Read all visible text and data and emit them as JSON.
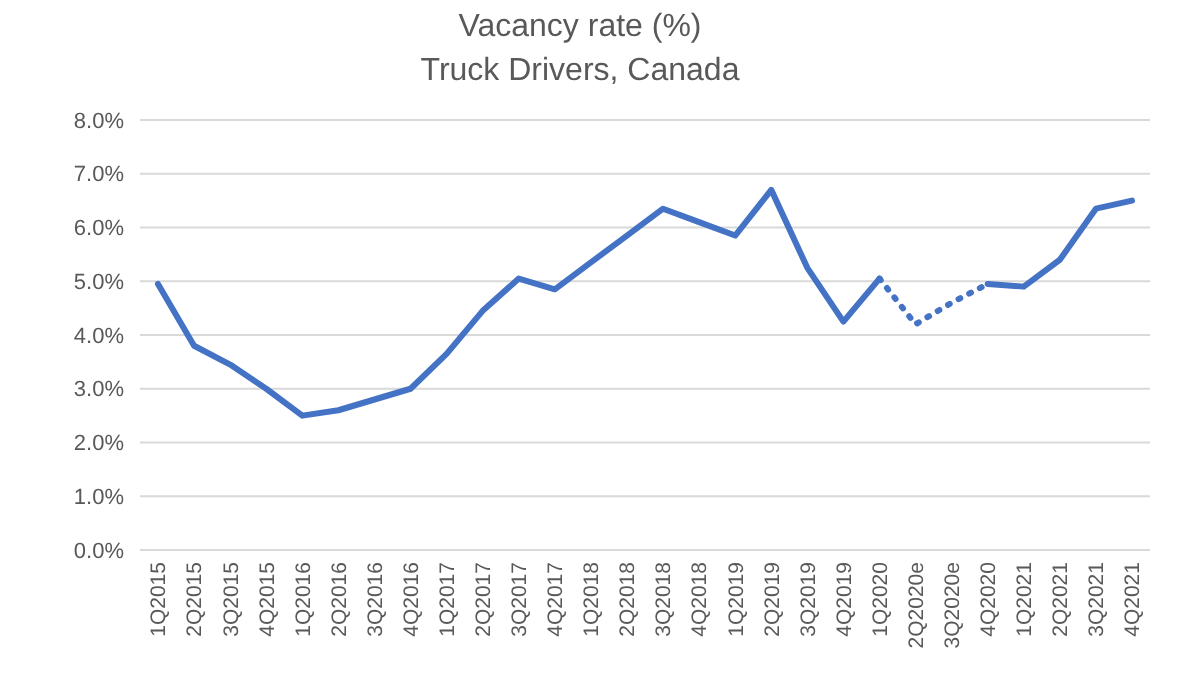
{
  "chart_data": {
    "type": "line",
    "title": "Vacancy rate (%)",
    "subtitle": "Truck Drivers, Canada",
    "categories": [
      "1Q2015",
      "2Q2015",
      "3Q2015",
      "4Q2015",
      "1Q2016",
      "2Q2016",
      "3Q2016",
      "4Q2016",
      "1Q2017",
      "2Q2017",
      "3Q2017",
      "4Q2017",
      "1Q2018",
      "2Q2018",
      "3Q2018",
      "4Q2018",
      "1Q2019",
      "2Q2019",
      "3Q2019",
      "4Q2019",
      "1Q2020",
      "2Q2020e",
      "3Q2020e",
      "4Q2020",
      "1Q2021",
      "2Q2021",
      "3Q2021",
      "4Q2021"
    ],
    "series": [
      {
        "color": "#4472c4",
        "line_style": "solid",
        "values": [
          4.95,
          3.8,
          3.45,
          3.0,
          2.5,
          2.6,
          2.8,
          3.0,
          3.65,
          4.45,
          5.05,
          4.85,
          5.35,
          5.85,
          6.35,
          6.1,
          5.85,
          6.7,
          5.25,
          4.25,
          5.05,
          null,
          null,
          4.95,
          4.9,
          5.4,
          6.35,
          6.5
        ]
      },
      {
        "color": "#4472c4",
        "line_style": "dotted",
        "values": [
          null,
          null,
          null,
          null,
          null,
          null,
          null,
          null,
          null,
          null,
          null,
          null,
          null,
          null,
          null,
          null,
          null,
          null,
          null,
          null,
          5.05,
          4.2,
          4.6,
          4.95,
          null,
          null,
          null,
          null
        ]
      }
    ],
    "ylim": [
      0,
      8
    ],
    "yticks": [
      {
        "value": 0,
        "label": "0.0%"
      },
      {
        "value": 1,
        "label": "1.0%"
      },
      {
        "value": 2,
        "label": "2.0%"
      },
      {
        "value": 3,
        "label": "3.0%"
      },
      {
        "value": 4,
        "label": "4.0%"
      },
      {
        "value": 5,
        "label": "5.0%"
      },
      {
        "value": 6,
        "label": "6.0%"
      },
      {
        "value": 7,
        "label": "7.0%"
      },
      {
        "value": 8,
        "label": "8.0%"
      }
    ],
    "grid": "y",
    "marker": "none"
  }
}
